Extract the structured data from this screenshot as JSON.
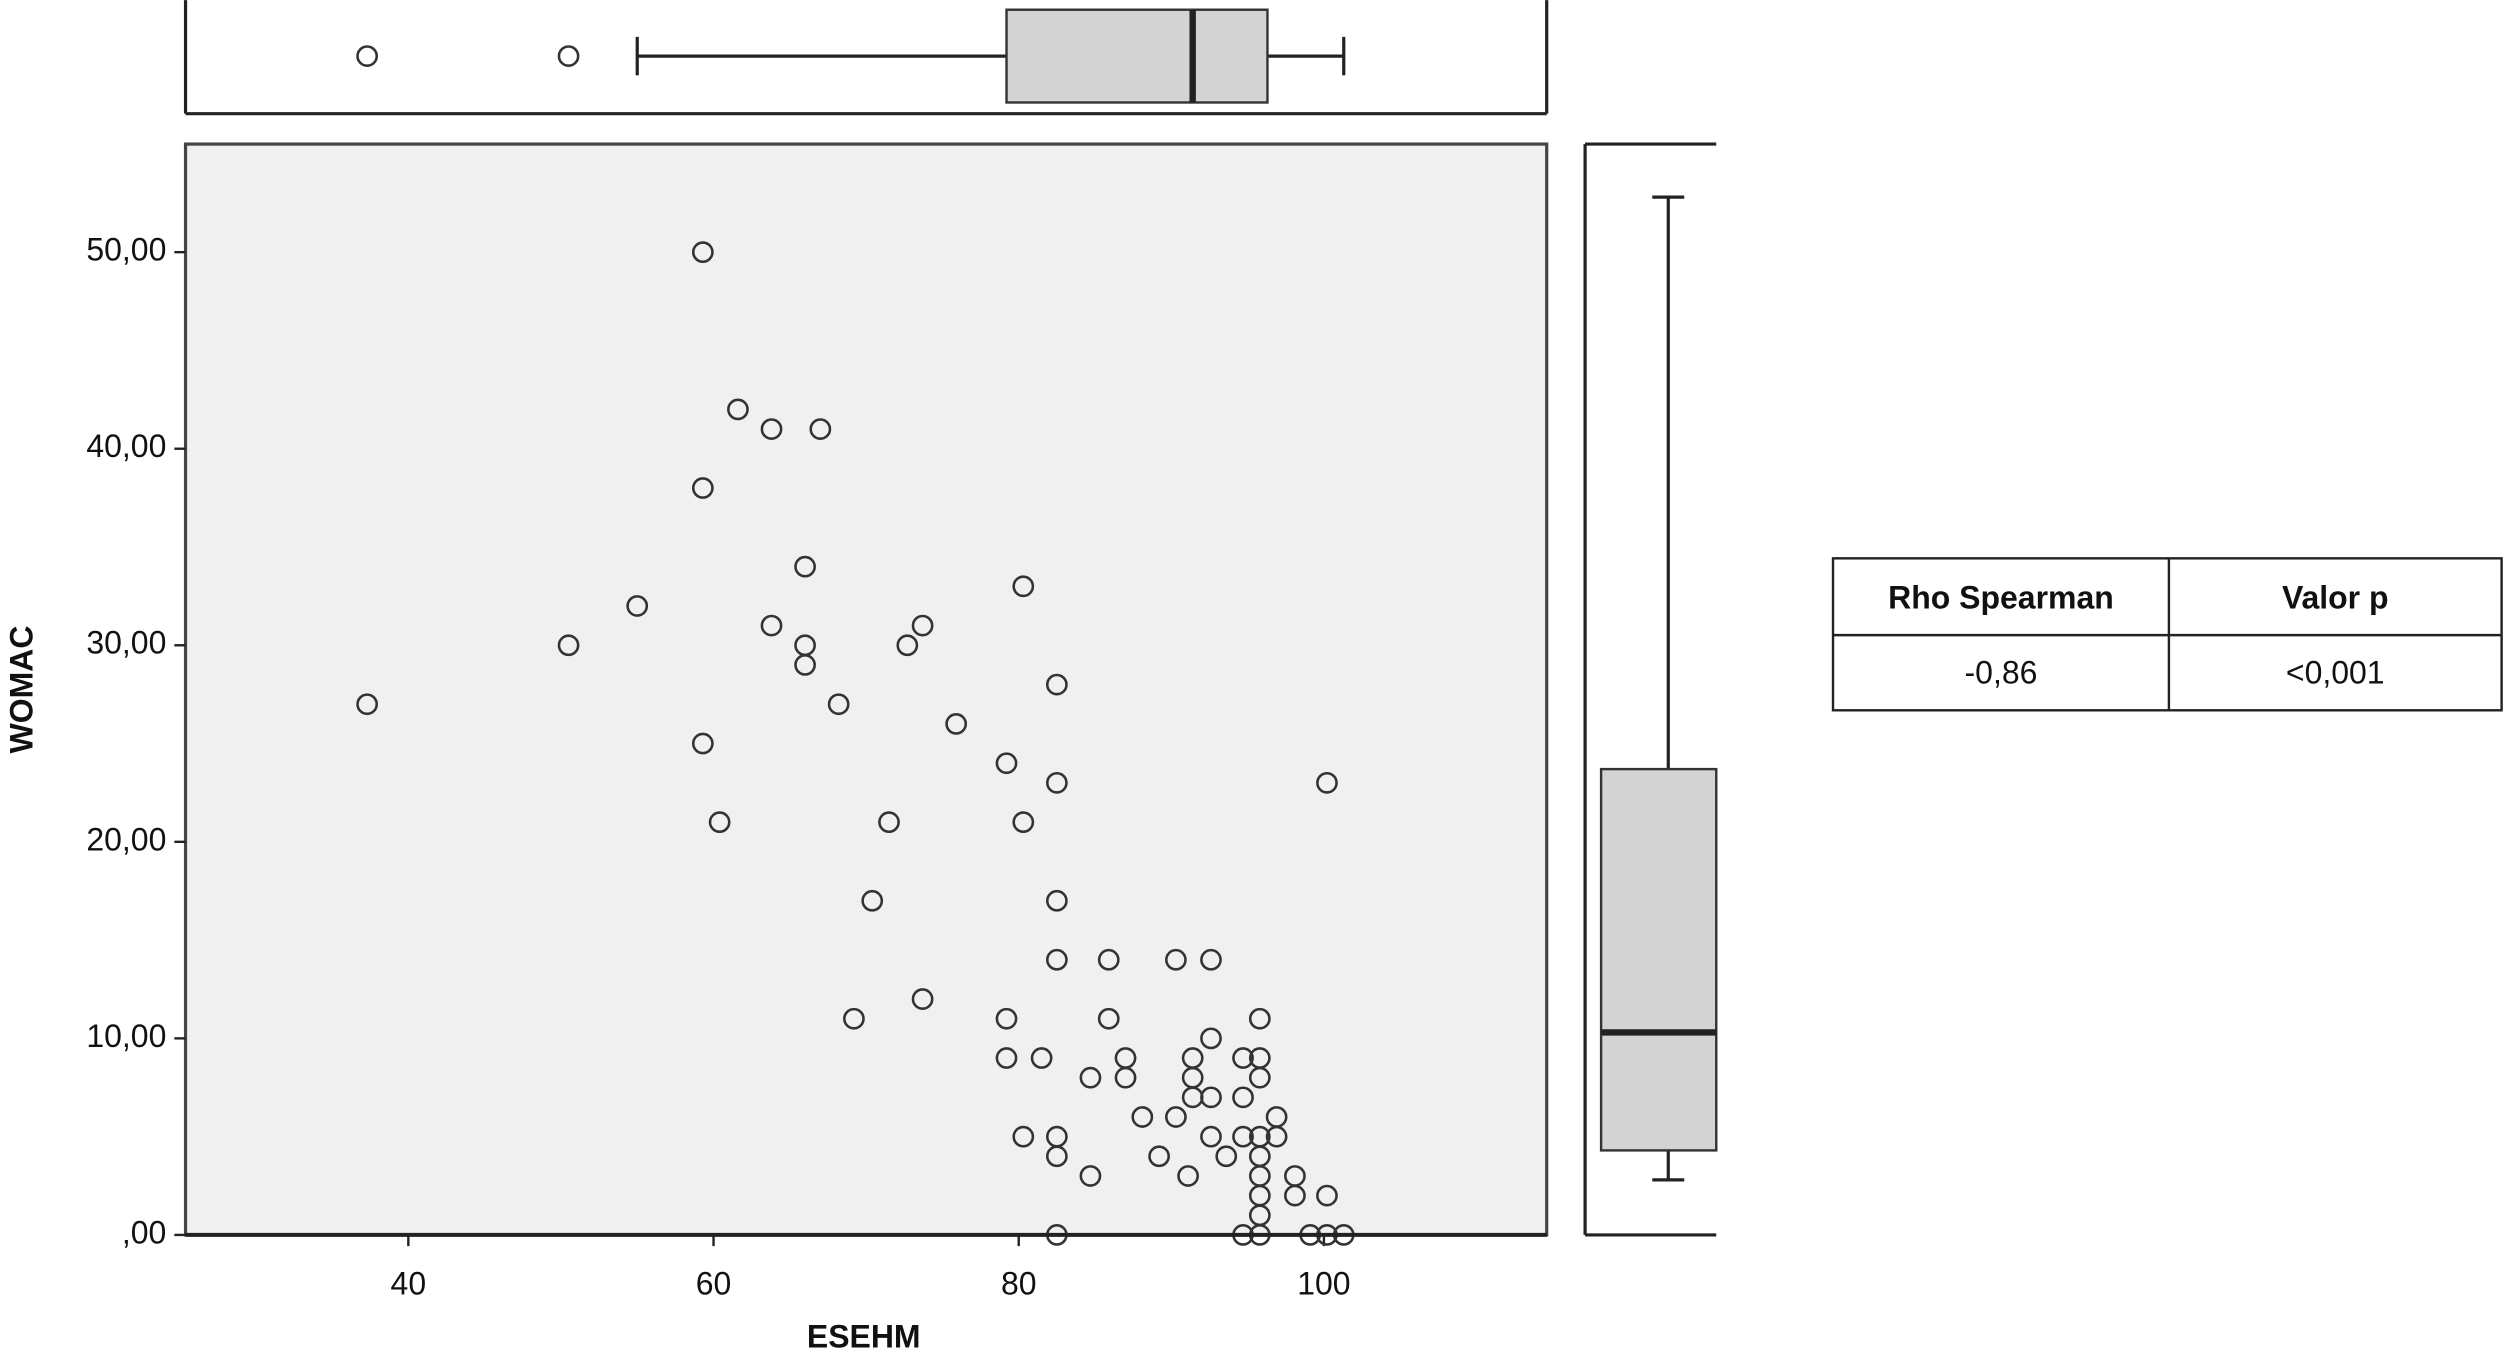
{
  "chart_data": {
    "type": "scatter",
    "xlabel": "ESEHM",
    "ylabel": "WOMAC",
    "x": [
      37.3,
      50.5,
      55,
      59.3,
      59.3,
      59.3,
      60.4,
      61.6,
      63.8,
      63.8,
      66,
      66,
      66,
      67,
      68.2,
      69.2,
      70.4,
      71.5,
      72.7,
      73.7,
      73.7,
      75.9,
      79.2,
      79.2,
      79.2,
      80.3,
      80.3,
      80.3,
      81.5,
      82.5,
      82.5,
      82.5,
      82.5,
      82.5,
      82.5,
      82.5,
      84.7,
      84.7,
      85.9,
      85.9,
      87,
      87,
      88.1,
      89.2,
      90.3,
      90.3,
      91.4,
      91.4,
      91.4,
      91.1,
      92.6,
      92.6,
      92.6,
      92.6,
      93.6,
      94.7,
      94.7,
      94.7,
      94.7,
      95.8,
      95.8,
      95.8,
      95.8,
      95.8,
      95.8,
      95.8,
      95.8,
      95.8,
      96.9,
      96.9,
      98.1,
      98.1,
      99.1,
      100.2,
      100.2,
      100.2,
      101.3
    ],
    "y": [
      27,
      30,
      32,
      50,
      38,
      25,
      21,
      42,
      41,
      31,
      34,
      30,
      29,
      41,
      27,
      11,
      17,
      21,
      30,
      31,
      12,
      26,
      24,
      11,
      9,
      33,
      21,
      5,
      9,
      28,
      23,
      17,
      14,
      5,
      4,
      0,
      8,
      3,
      14,
      11,
      9,
      8,
      6,
      4,
      14,
      6,
      9,
      8,
      7,
      3,
      14,
      10,
      7,
      5,
      4,
      9,
      7,
      5,
      0,
      11,
      9,
      8,
      5,
      4,
      3,
      2,
      1,
      0,
      6,
      5,
      3,
      2,
      0,
      2,
      23,
      0,
      0
    ],
    "xlim": [
      25.4,
      114.6
    ],
    "ylim": [
      0,
      55.5
    ],
    "xticks": [
      40,
      60,
      80,
      100
    ],
    "yticks": [
      {
        "value": 0,
        "label": ",00"
      },
      {
        "value": 10,
        "label": "10,00"
      },
      {
        "value": 20,
        "label": "20,00"
      },
      {
        "value": 30,
        "label": "30,00"
      },
      {
        "value": 40,
        "label": "40,00"
      },
      {
        "value": 50,
        "label": "50,00"
      }
    ],
    "x_box": {
      "whisker_low": 55,
      "q1": 79.2,
      "median": 91.4,
      "q3": 96.3,
      "whisker_high": 101.3,
      "outliers": [
        37.3,
        50.5
      ]
    },
    "y_box": {
      "whisker_low": 2.8,
      "q1": 4.3,
      "median": 10.3,
      "q3": 23.7,
      "whisker_high": 52.8
    },
    "box_color": "#d3d3d3",
    "plot_background": "#f0f0f0"
  },
  "table": {
    "header": [
      "Rho Spearman",
      "Valor p"
    ],
    "rows": [
      [
        "-0,86",
        "<0,001"
      ]
    ]
  }
}
